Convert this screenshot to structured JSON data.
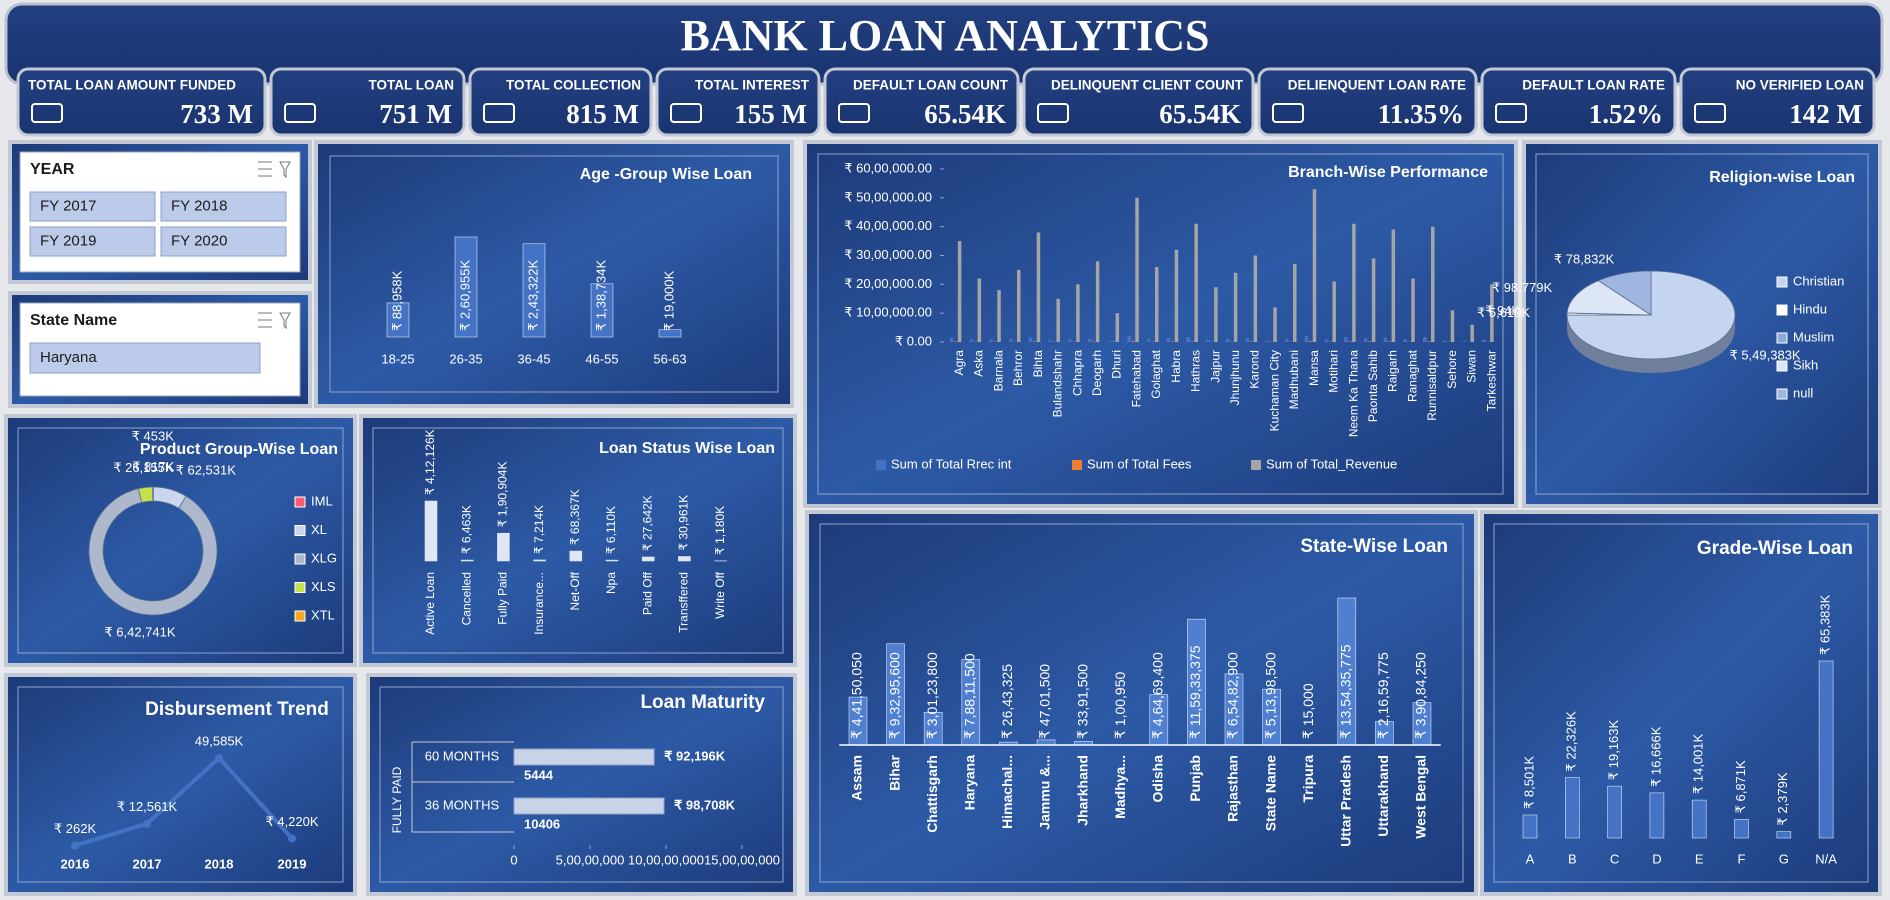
{
  "header": {
    "title": "BANK LOAN ANALYTICS"
  },
  "kpis": [
    {
      "label": "TOTAL LOAN AMOUNT FUNDED",
      "value": "733 M"
    },
    {
      "label": "TOTAL LOAN",
      "value": "751 M"
    },
    {
      "label": "TOTAL COLLECTION",
      "value": "815 M"
    },
    {
      "label": "TOTAL INTEREST",
      "value": "155 M"
    },
    {
      "label": "DEFAULT LOAN COUNT",
      "value": "65.54K"
    },
    {
      "label": "DELINQUENT CLIENT COUNT",
      "value": "65.54K"
    },
    {
      "label": "DELIENQUENT LOAN RATE",
      "value": "11.35%"
    },
    {
      "label": "DEFAULT LOAN RATE",
      "value": "1.52%"
    },
    {
      "label": "NO VERIFIED LOAN",
      "value": "142 M"
    }
  ],
  "slicers": {
    "year": {
      "title": "YEAR",
      "items": [
        "FY 2017",
        "FY 2018",
        "FY 2019",
        "FY 2020"
      ]
    },
    "state": {
      "title": "State Name",
      "items": [
        "Haryana"
      ]
    }
  },
  "chart_data": [
    {
      "type": "bar",
      "title": "Age -Group Wise Loan",
      "color": "#4472c4",
      "categories": [
        "18-25",
        "26-35",
        "36-45",
        "46-55",
        "56-63"
      ],
      "values": [
        88958,
        260955,
        243322,
        138734,
        19000
      ],
      "value_labels": [
        "₹ 88,958K",
        "₹ 2,60,955K",
        "₹ 2,43,322K",
        "₹ 1,38,734K",
        "₹ 19,000K"
      ]
    },
    {
      "type": "bar",
      "title": "Branch-Wise Performance",
      "grid": false,
      "categories": [
        "Agra",
        "Aska",
        "Barnala",
        "Behror",
        "Bihta",
        "Bulandshahr",
        "Chhapra",
        "Deogarh",
        "Dhuri",
        "Fatehabad",
        "Golaghat",
        "Habra",
        "Hathras",
        "Jajpur",
        "Jhunjhunu",
        "Karond",
        "Kuchaman City",
        "Madhubani",
        "Mansa",
        "Motihari",
        "Neem Ka Thana",
        "Paonta Sahib",
        "Raigarh",
        "Ranaghat",
        "Runnisaldpur",
        "Sehore",
        "Siwan",
        "Tarkeshwar"
      ],
      "series": [
        {
          "name": "Sum of Total Rrec int",
          "color": "#4472c4",
          "values": [
            150000,
            90000,
            80000,
            110000,
            160000,
            60000,
            90000,
            120000,
            40000,
            210000,
            110000,
            140000,
            170000,
            80000,
            100000,
            130000,
            50000,
            110000,
            220000,
            90000,
            170000,
            120000,
            160000,
            90000,
            170000,
            50000,
            30000,
            80000
          ]
        },
        {
          "name": "Sum of Total Fees",
          "color": "#ed7d31",
          "values": [
            20000,
            10000,
            10000,
            10000,
            20000,
            10000,
            10000,
            20000,
            10000,
            30000,
            10000,
            20000,
            20000,
            10000,
            10000,
            20000,
            10000,
            10000,
            30000,
            10000,
            20000,
            20000,
            20000,
            10000,
            20000,
            10000,
            0,
            10000
          ]
        },
        {
          "name": "Sum of Total_Revenue",
          "color": "#a5a5a5",
          "values": [
            3500000,
            2200000,
            1800000,
            2500000,
            3800000,
            1500000,
            2000000,
            2800000,
            1000000,
            5000000,
            2600000,
            3200000,
            4100000,
            1900000,
            2400000,
            3000000,
            1200000,
            2700000,
            5300000,
            2100000,
            4100000,
            2900000,
            3900000,
            2200000,
            4000000,
            1100000,
            600000,
            2000000
          ]
        }
      ],
      "ylim": [
        0,
        6000000
      ],
      "yticks": [
        {
          "value": 0,
          "label": "₹ 0.00"
        },
        {
          "value": 1000000,
          "label": "₹ 10,00,000.00"
        },
        {
          "value": 2000000,
          "label": "₹ 20,00,000.00"
        },
        {
          "value": 3000000,
          "label": "₹ 30,00,000.00"
        },
        {
          "value": 4000000,
          "label": "₹ 40,00,000.00"
        },
        {
          "value": 5000000,
          "label": "₹ 50,00,000.00"
        },
        {
          "value": 6000000,
          "label": "₹ 60,00,000.00"
        }
      ]
    },
    {
      "type": "pie",
      "title": "Religion-wise Loan",
      "categories": [
        "Christian",
        "Hindu",
        "Muslim",
        "Sikh",
        "null"
      ],
      "values": [
        549383,
        5610,
        94,
        98779,
        78832
      ],
      "value_labels": [
        "₹ 5,49,383K",
        "₹ 5,610K",
        "₹ 94K",
        "₹ 98,779K",
        "₹ 78,832K"
      ],
      "colors": [
        "#c5d5ef",
        "#ffffff",
        "#8faadc",
        "#dce6f5",
        "#9fb6e0"
      ]
    },
    {
      "type": "pie",
      "title": "Product Group-Wise Loan",
      "hole": 0.78,
      "categories": [
        "IML",
        "XL",
        "XLG",
        "XLS",
        "XTL"
      ],
      "values": [
        817,
        62531,
        642741,
        26155,
        453
      ],
      "value_labels": [
        "₹ 817K",
        "₹ 62,531K",
        "₹ 6,42,741K",
        "₹ 26,155K",
        "₹ 453K"
      ],
      "colors": [
        "#ff5b6e",
        "#c9d6ee",
        "#aeb8cc",
        "#c8e04a",
        "#f5a623"
      ]
    },
    {
      "type": "bar",
      "title": "Loan Status Wise Loan",
      "color": "#dfe7f5",
      "categories": [
        "Active Loan",
        "Cancelled",
        "Fully Paid",
        "Insurance...",
        "Net-Off",
        "Npa",
        "Paid Off",
        "Transffered",
        "Write Off"
      ],
      "values": [
        412126,
        6463,
        190904,
        7214,
        68367,
        6110,
        27642,
        30961,
        1180
      ],
      "value_labels": [
        "₹ 4,12,126K",
        "₹ 6,463K",
        "₹ 1,90,904K",
        "₹ 7,214K",
        "₹ 68,367K",
        "₹ 6,110K",
        "₹ 27,642K",
        "₹ 30,961K",
        "₹ 1,180K"
      ]
    },
    {
      "type": "line",
      "title": "Disbursement Trend",
      "color": "#4472c4",
      "categories": [
        "2016",
        "2017",
        "2018",
        "2019"
      ],
      "values": [
        262,
        12561,
        49585,
        4220
      ],
      "value_labels": [
        "₹ 262K",
        "₹ 12,561K",
        "49,585K",
        "₹ 4,220K"
      ]
    },
    {
      "type": "bar",
      "title": "Loan Maturity",
      "orientation": "horizontal",
      "group": "FULLY PAID",
      "color": "#c9d3e8",
      "categories": [
        "60 MONTHS",
        "36 MONTHS"
      ],
      "values": [
        92196000,
        98708000
      ],
      "value_labels": [
        "₹ 92,196K",
        "₹ 98,708K"
      ],
      "counts": [
        5444,
        10406
      ],
      "xlim": [
        0,
        150000000
      ],
      "xticks": [
        0,
        {
          "value": 50000000,
          "label": "5,00,00,000"
        },
        {
          "value": 100000000,
          "label": "10,00,00,000"
        },
        {
          "value": 150000000,
          "label": "15,00,00,000"
        }
      ]
    },
    {
      "type": "bar",
      "title": "State-Wise Loan",
      "color": "#4f7fd1",
      "categories": [
        "Assam",
        "Bihar",
        "Chattisgarh",
        "Haryana",
        "Himachal...",
        "Jammu &...",
        "Jharkhand",
        "Madhya...",
        "Odisha",
        "Punjab",
        "Rajasthan",
        "State Name",
        "Tripura",
        "Uttar Pradesh",
        "Uttarakhand",
        "West Bengal"
      ],
      "values": [
        44150050,
        93295600,
        30123800,
        78811500,
        2643325,
        4701500,
        3391500,
        100950,
        46469400,
        115933375,
        65482900,
        51398500,
        15000,
        135435775,
        21659775,
        39084250
      ],
      "value_labels": [
        "₹ 4,41,50,050",
        "₹ 9,32,95,600",
        "₹ 3,01,23,800",
        "₹ 7,88,11,500",
        "₹ 26,43,325",
        "₹ 47,01,500",
        "₹ 33,91,500",
        "₹ 1,00,950",
        "₹ 4,64,69,400",
        "₹ 11,59,33,375",
        "₹ 6,54,82,900",
        "₹ 5,13,98,500",
        "₹ 15,000",
        "₹ 13,54,35,775",
        "₹ 2,16,59,775",
        "₹ 3,90,84,250"
      ]
    },
    {
      "type": "bar",
      "title": "Grade-Wise Loan",
      "color": "#4472c4",
      "categories": [
        "A",
        "B",
        "C",
        "D",
        "E",
        "F",
        "G",
        "N/A"
      ],
      "values": [
        8501,
        22326,
        19163,
        16666,
        14001,
        6871,
        2379,
        65383
      ],
      "value_labels": [
        "₹ 8,501K",
        "₹ 22,326K",
        "₹ 19,163K",
        "₹ 16,666K",
        "₹ 14,001K",
        "₹ 6,871K",
        "₹ 2,379K",
        "₹ 65,383K"
      ]
    }
  ]
}
